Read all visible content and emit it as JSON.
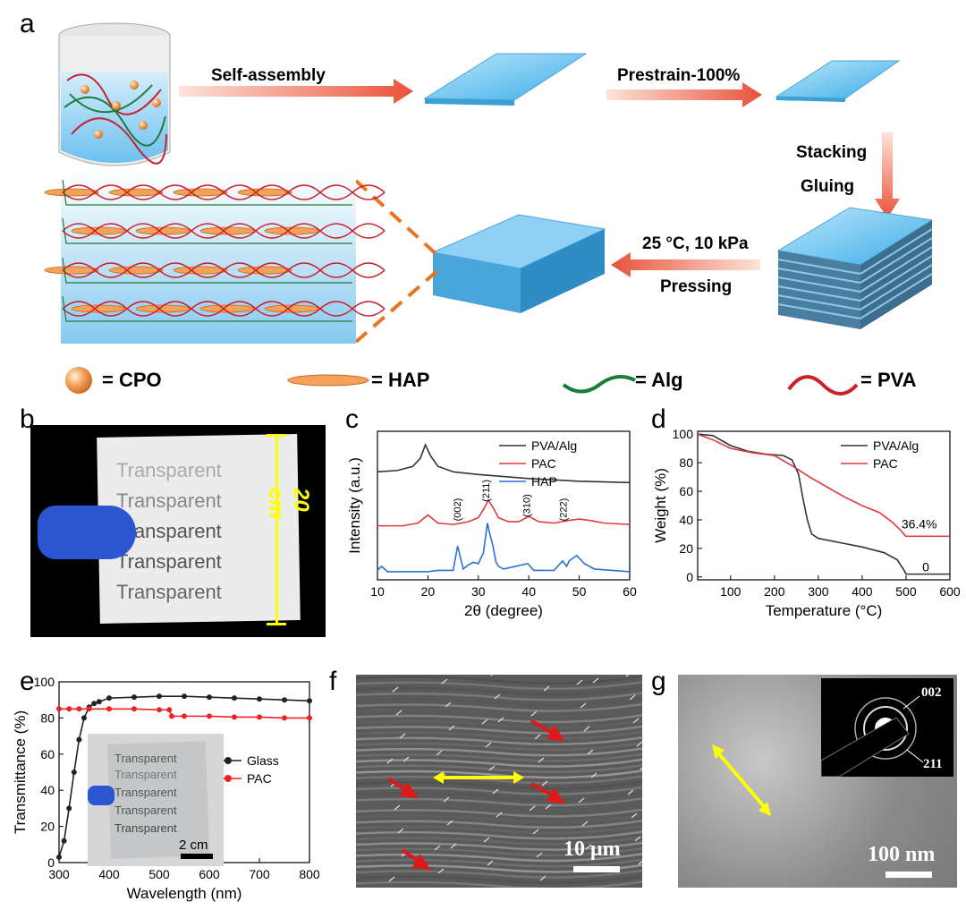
{
  "panel_labels": {
    "a": "a",
    "b": "b",
    "c": "c",
    "d": "d",
    "e": "e",
    "f": "f",
    "g": "g"
  },
  "schematic": {
    "step1": "Self-assembly",
    "step2": "Prestrain-100%",
    "step3a": "Stacking",
    "step3b": "Gluing",
    "step4a": "25 °C, 10 kPa",
    "step4b": "Pressing",
    "legend": {
      "cpo": "= CPO",
      "hap": "= HAP",
      "alg": "= Alg",
      "pva": "= PVA"
    }
  },
  "photo_b": {
    "words": [
      "Transparent",
      "Transparent",
      "Transparent",
      "Transparent",
      "Transparent"
    ],
    "size_label": "20 cm"
  },
  "photo_e_inset": {
    "words": [
      "Transparent",
      "Transparent",
      "Transparent",
      "Transparent",
      "Transparent"
    ],
    "scale": "2 cm"
  },
  "sem_f": {
    "scale": "10 μm"
  },
  "tem_g": {
    "scale": "100 nm",
    "ring1": "002",
    "ring2": "211"
  },
  "colors": {
    "black": "#333333",
    "red": "#e0393e",
    "blue": "#2a6fd6",
    "arrow": "#e8523a",
    "yellow": "#ffff00"
  },
  "chart_data": [
    {
      "id": "c",
      "type": "line",
      "xlabel": "2θ (degree)",
      "ylabel": "Intensity (a.u.)",
      "xlim": [
        10,
        60
      ],
      "xticks": [
        10,
        20,
        30,
        40,
        50,
        60
      ],
      "legend_position": "top-right",
      "series": [
        {
          "name": "PVA/Alg",
          "color": "#333333",
          "x": [
            10,
            14,
            17,
            18.5,
            19.5,
            20.5,
            22,
            25,
            30,
            40,
            50,
            60
          ],
          "y": [
            0.8,
            0.81,
            0.84,
            0.9,
            1.0,
            0.92,
            0.84,
            0.8,
            0.78,
            0.75,
            0.73,
            0.72
          ]
        },
        {
          "name": "PAC",
          "color": "#e0393e",
          "x": [
            10,
            15,
            18,
            20,
            22,
            25,
            28,
            30,
            31,
            32,
            33,
            34,
            36,
            38,
            40,
            42,
            45,
            48,
            50,
            52,
            55,
            60
          ],
          "y": [
            0.4,
            0.4,
            0.42,
            0.48,
            0.42,
            0.41,
            0.43,
            0.46,
            0.52,
            0.59,
            0.53,
            0.46,
            0.43,
            0.43,
            0.47,
            0.43,
            0.42,
            0.44,
            0.45,
            0.44,
            0.42,
            0.41
          ]
        },
        {
          "name": "HAP",
          "color": "#2a6fd6",
          "x": [
            10,
            10.8,
            12,
            20,
            22,
            25,
            25.9,
            27,
            28,
            29,
            30,
            31,
            31.8,
            32.2,
            32.9,
            33.5,
            34,
            35,
            39.8,
            41,
            45,
            46.7,
            47.5,
            48,
            49.5,
            51,
            53,
            60
          ],
          "y": [
            0.07,
            0.1,
            0.06,
            0.06,
            0.07,
            0.07,
            0.25,
            0.08,
            0.11,
            0.13,
            0.12,
            0.2,
            0.42,
            0.35,
            0.25,
            0.13,
            0.1,
            0.08,
            0.12,
            0.07,
            0.07,
            0.14,
            0.1,
            0.14,
            0.18,
            0.12,
            0.08,
            0.06
          ]
        }
      ],
      "annotations": [
        "(002)",
        "(211)",
        "(310)",
        "(222)"
      ]
    },
    {
      "id": "d",
      "type": "line",
      "xlabel": "Temperature (°C)",
      "ylabel": "Weight (%)",
      "xlim": [
        25,
        600
      ],
      "ylim": [
        -2,
        102
      ],
      "xticks": [
        100,
        200,
        300,
        400,
        500,
        600
      ],
      "yticks": [
        0,
        20,
        40,
        60,
        80,
        100
      ],
      "legend_position": "top-right",
      "series": [
        {
          "name": "PVA/Alg",
          "color": "#333333",
          "x": [
            25,
            60,
            100,
            140,
            180,
            220,
            240,
            255,
            265,
            275,
            285,
            300,
            350,
            400,
            450,
            480,
            495,
            500,
            600
          ],
          "y": [
            100,
            99,
            92,
            88,
            86,
            85,
            82,
            72,
            55,
            40,
            30,
            27,
            24,
            21,
            17,
            12,
            5,
            2,
            2
          ]
        },
        {
          "name": "PAC",
          "color": "#e0393e",
          "x": [
            25,
            60,
            100,
            150,
            200,
            240,
            280,
            320,
            360,
            400,
            440,
            470,
            490,
            495,
            500,
            600
          ],
          "y": [
            100,
            96,
            90,
            87,
            85,
            78,
            70,
            63,
            56,
            50,
            45,
            38,
            32,
            30,
            28.5,
            28.5
          ]
        }
      ],
      "annotations": [
        "36.4%",
        "0"
      ]
    },
    {
      "id": "e",
      "type": "line",
      "xlabel": "Wavelength (nm)",
      "ylabel": "Transmittance (%)",
      "xlim": [
        300,
        800
      ],
      "ylim": [
        0,
        100
      ],
      "xticks": [
        300,
        400,
        500,
        600,
        700,
        800
      ],
      "yticks": [
        0,
        20,
        40,
        60,
        80,
        100
      ],
      "legend_position": "center-right",
      "series": [
        {
          "name": "Glass",
          "color": "#222222",
          "x": [
            300,
            310,
            320,
            330,
            340,
            350,
            360,
            370,
            380,
            400,
            450,
            500,
            550,
            600,
            650,
            700,
            750,
            800
          ],
          "y": [
            3,
            12,
            30,
            50,
            68,
            80,
            86,
            88,
            89,
            91,
            91.5,
            92,
            92,
            91.5,
            91,
            90.5,
            90,
            89.5
          ]
        },
        {
          "name": "PAC",
          "color": "#ee2222",
          "x": [
            300,
            320,
            340,
            360,
            400,
            450,
            500,
            520,
            525,
            550,
            600,
            650,
            700,
            750,
            800
          ],
          "y": [
            85,
            85,
            85,
            85,
            85,
            85,
            84.5,
            84.5,
            81,
            81,
            81,
            80.5,
            80.5,
            80,
            80
          ]
        }
      ]
    }
  ]
}
